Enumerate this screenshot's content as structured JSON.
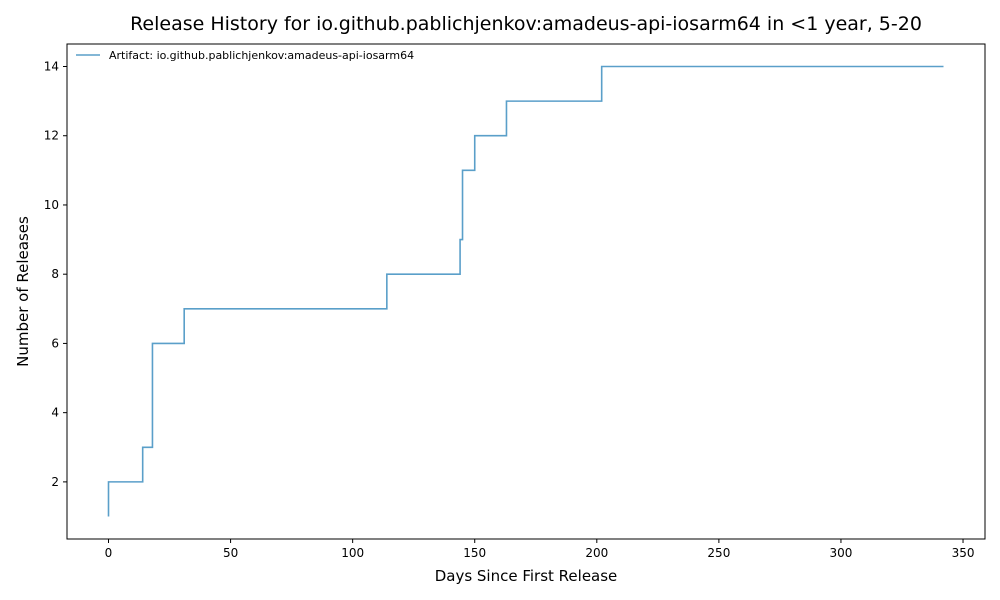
{
  "chart_data": {
    "type": "line",
    "step": "post",
    "title": "Release History for io.github.pablichjenkov:amadeus-api-iosarm64 in <1 year, 5-20",
    "xlabel": "Days Since First Release",
    "ylabel": "Number of Releases",
    "xlim": [
      -17,
      359
    ],
    "ylim": [
      0.35,
      14.65
    ],
    "xticks": [
      0,
      50,
      100,
      150,
      200,
      250,
      300,
      350
    ],
    "yticks": [
      2,
      4,
      6,
      8,
      10,
      12,
      14
    ],
    "grid": false,
    "legend_position": "top-left",
    "series": [
      {
        "name": "Artifact: io.github.pablichjenkov:amadeus-api-iosarm64",
        "color": "#5a9fc9",
        "x": [
          0,
          0,
          14,
          18,
          31,
          114,
          144,
          145,
          150,
          163,
          202,
          342
        ],
        "y": [
          1,
          2,
          3,
          6,
          7,
          8,
          9,
          11,
          12,
          13,
          14,
          14
        ]
      }
    ]
  }
}
